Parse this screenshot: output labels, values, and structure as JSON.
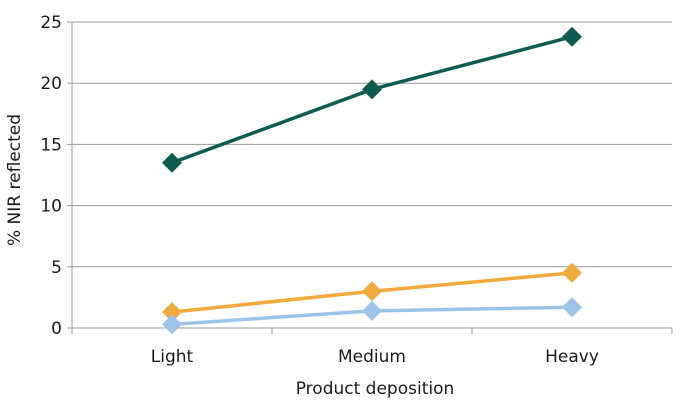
{
  "chart_data": {
    "type": "line",
    "title": "",
    "xlabel": "Product deposition",
    "ylabel": "% NIR reflected",
    "categories": [
      "Light",
      "Medium",
      "Heavy"
    ],
    "ylim": [
      0,
      25
    ],
    "yticks": [
      0,
      5,
      10,
      15,
      20,
      25
    ],
    "grid": true,
    "legend": "none",
    "series": [
      {
        "values": [
          13.5,
          19.5,
          23.8
        ],
        "color": "#0d5c4f",
        "marker": "diamond"
      },
      {
        "values": [
          1.3,
          3.0,
          4.5
        ],
        "color": "#f2a93b",
        "marker": "diamond"
      },
      {
        "values": [
          0.3,
          1.4,
          1.7
        ],
        "color": "#9cc4e8",
        "marker": "diamond"
      }
    ]
  }
}
